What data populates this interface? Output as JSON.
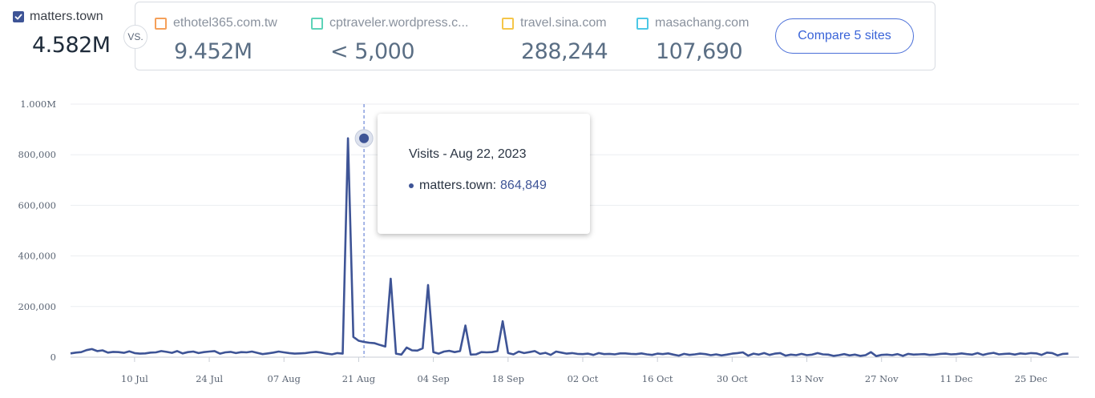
{
  "primary": {
    "site": "matters.town",
    "visits": "4.582M",
    "checked": true,
    "color": "#3e5496"
  },
  "vs_label": "VS.",
  "competitors": [
    {
      "site": "ethotel365.com.tw",
      "visits": "9.452M",
      "color": "#f5a05a",
      "checked": false
    },
    {
      "site": "cptraveler.wordpress.c...",
      "visits": "< 5,000",
      "color": "#5ed3b8",
      "checked": false
    },
    {
      "site": "travel.sina.com",
      "visits": "288,244",
      "color": "#f5c64a",
      "checked": false
    },
    {
      "site": "masachang.com",
      "visits": "107,690",
      "color": "#4cc8e6",
      "checked": false
    }
  ],
  "compare_button": "Compare 5 sites",
  "tooltip": {
    "title": "Visits - Aug 22, 2023",
    "series_label": "matters.town:",
    "value": "864,849"
  },
  "chart_data": {
    "type": "line",
    "title": "",
    "xlabel": "",
    "ylabel": "",
    "ylim": [
      0,
      1000000
    ],
    "y_ticks": [
      0,
      200000,
      400000,
      600000,
      800000,
      1000000
    ],
    "y_tick_labels": [
      "0",
      "200,000",
      "400,000",
      "600,000",
      "800,000",
      "1.000M"
    ],
    "x_range": [
      "2023-06-28",
      "2024-01-03"
    ],
    "x_ticks": [
      "2023-07-10",
      "2023-07-24",
      "2023-08-07",
      "2023-08-21",
      "2023-09-04",
      "2023-09-18",
      "2023-10-02",
      "2023-10-16",
      "2023-10-30",
      "2023-11-13",
      "2023-11-27",
      "2023-12-11",
      "2023-12-25"
    ],
    "x_tick_labels": [
      "10 Jul",
      "24 Jul",
      "07 Aug",
      "21 Aug",
      "04 Sep",
      "18 Sep",
      "02 Oct",
      "16 Oct",
      "30 Oct",
      "13 Nov",
      "27 Nov",
      "11 Dec",
      "25 Dec"
    ],
    "grid": true,
    "highlight": {
      "date": "2023-08-22",
      "value": 864849
    },
    "series": [
      {
        "name": "matters.town",
        "color": "#3e5496",
        "start_date": "2023-06-28",
        "values": [
          15000,
          18000,
          20000,
          28000,
          32000,
          24000,
          27000,
          18000,
          21000,
          20000,
          17000,
          23000,
          16000,
          14000,
          15000,
          18000,
          19000,
          24000,
          21000,
          17000,
          24000,
          15000,
          20000,
          22000,
          16000,
          20000,
          22000,
          24000,
          14000,
          19000,
          21000,
          16000,
          20000,
          19000,
          22000,
          17000,
          12000,
          15000,
          18000,
          22000,
          19000,
          16000,
          14000,
          15000,
          16000,
          19000,
          21000,
          18000,
          14000,
          11000,
          16000,
          14000,
          864849,
          80000,
          65000,
          60000,
          57000,
          55000,
          48000,
          42000,
          310000,
          14000,
          10000,
          38000,
          27000,
          26000,
          35000,
          285000,
          20000,
          14000,
          22000,
          25000,
          20000,
          24000,
          125000,
          10000,
          11000,
          20000,
          19000,
          20000,
          24000,
          142000,
          16000,
          11000,
          22000,
          16000,
          20000,
          24000,
          13000,
          17000,
          9000,
          22000,
          18000,
          14000,
          16000,
          13000,
          12000,
          14000,
          9000,
          16000,
          12000,
          13000,
          11000,
          15000,
          15000,
          13000,
          12000,
          15000,
          11000,
          9000,
          14000,
          12000,
          15000,
          10000,
          6000,
          13000,
          9000,
          11000,
          14000,
          12000,
          8000,
          11000,
          7000,
          10000,
          14000,
          16000,
          19000,
          6000,
          14000,
          10000,
          16000,
          9000,
          14000,
          16000,
          6000,
          10000,
          8000,
          13000,
          8000,
          10000,
          16000,
          11000,
          10000,
          5000,
          8000,
          12000,
          7000,
          10000,
          5000,
          8000,
          20000,
          4000,
          9000,
          10000,
          8000,
          12000,
          5000,
          13000,
          10000,
          11000,
          12000,
          9000,
          10000,
          13000,
          14000,
          11000,
          12000,
          15000,
          12000,
          10000,
          16000,
          9000,
          14000,
          17000,
          11000,
          13000,
          14000,
          10000,
          15000,
          13000,
          16000,
          15000,
          9000,
          18000,
          16000,
          7000,
          13000,
          14000
        ]
      }
    ]
  }
}
